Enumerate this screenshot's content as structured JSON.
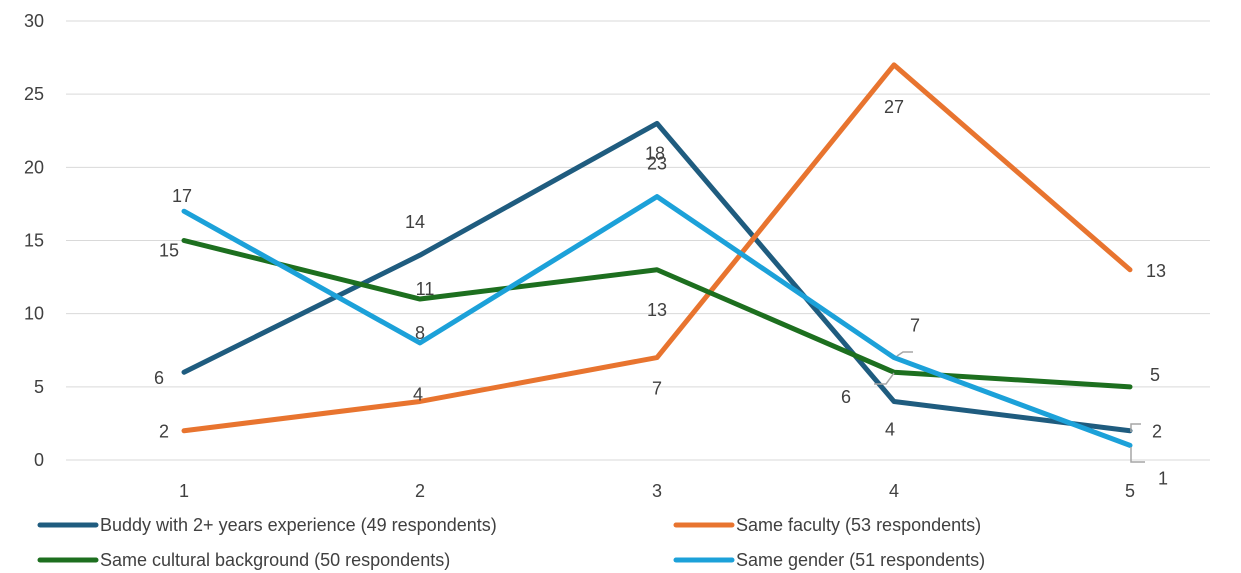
{
  "chart_data": {
    "type": "line",
    "x": [
      1,
      2,
      3,
      4,
      5
    ],
    "ylim": [
      0,
      30
    ],
    "yticks": [
      0,
      5,
      10,
      15,
      20,
      25,
      30
    ],
    "grid": true,
    "legend_position": "bottom",
    "series": [
      {
        "name": "Buddy with 2+ years experience (49 respondents)",
        "color": "#1f5c7f",
        "values": [
          6,
          14,
          23,
          4,
          2
        ]
      },
      {
        "name": "Same faculty (53 respondents)",
        "color": "#e8742f",
        "values": [
          2,
          4,
          7,
          27,
          13
        ]
      },
      {
        "name": "Same cultural background (50 respondents)",
        "color": "#1d6f1f",
        "values": [
          15,
          11,
          13,
          6,
          5
        ]
      },
      {
        "name": "Same gender (51 respondents)",
        "color": "#1ca1d9",
        "values": [
          17,
          8,
          18,
          7,
          1
        ]
      }
    ]
  }
}
